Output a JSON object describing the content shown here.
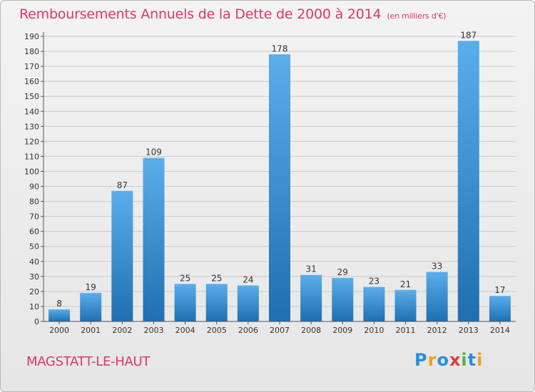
{
  "title": "Remboursements Annuels de la Dette de 2000 à 2014",
  "subtitle": "(en milliers d'€)",
  "commune": "MAGSTATT-LE-HAUT",
  "logo": {
    "letters": [
      "P",
      "r",
      "o",
      "x",
      "i",
      "t",
      "i"
    ],
    "colors": [
      "#2a8de0",
      "#e8a21b",
      "#2a8de0",
      "#e03a3a",
      "#55b23a",
      "#2a8de0",
      "#e8a21b"
    ]
  },
  "colors": {
    "title": "#e0346e",
    "bar_top": "#5aaeea",
    "bar_bottom": "#1f6fb0",
    "grid": "#c9c9c9"
  },
  "chart_data": {
    "type": "bar",
    "categories": [
      "2000",
      "2001",
      "2002",
      "2003",
      "2004",
      "2005",
      "2006",
      "2007",
      "2008",
      "2009",
      "2010",
      "2011",
      "2012",
      "2013",
      "2014"
    ],
    "values": [
      8,
      19,
      87,
      109,
      25,
      25,
      24,
      178,
      31,
      29,
      23,
      21,
      33,
      187,
      17
    ],
    "ylim": [
      0,
      190
    ],
    "yticks": [
      0,
      10,
      20,
      30,
      40,
      50,
      60,
      70,
      80,
      90,
      100,
      110,
      120,
      130,
      140,
      150,
      160,
      170,
      180,
      190
    ],
    "grid": true,
    "legend": "none"
  }
}
